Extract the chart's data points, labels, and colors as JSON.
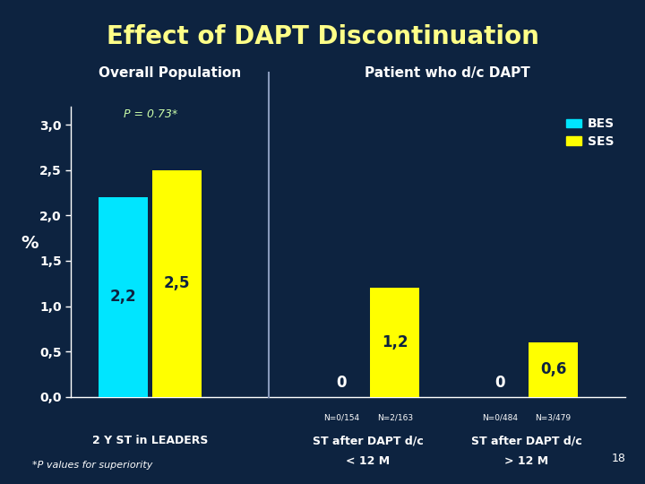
{
  "title": "Effect of DAPT Discontinuation",
  "title_color": "#FFFF88",
  "background_color": "#0d2340",
  "ylabel": "%",
  "ylim": [
    0,
    3.2
  ],
  "yticks": [
    0.0,
    0.5,
    1.0,
    1.5,
    2.0,
    2.5,
    3.0
  ],
  "ytick_labels": [
    "0,0",
    "0,5",
    "1,0",
    "1,5",
    "2,0",
    "2,5",
    "3,0"
  ],
  "section_left_label": "Overall Population",
  "section_right_label": "Patient who d/c DAPT",
  "p_value_text": "P = 0.73*",
  "groups": [
    {
      "xlabel_line1": "2 Y ST in LEADERS",
      "xlabel_line2": "",
      "bes_value": 2.2,
      "ses_value": 2.5,
      "bes_label": "2,2",
      "ses_label": "2,5",
      "bes_n": "",
      "ses_n": ""
    },
    {
      "xlabel_line1": "ST after DAPT d/c",
      "xlabel_line2": "< 12 M",
      "bes_value": 0,
      "ses_value": 1.2,
      "bes_label": "0",
      "ses_label": "1,2",
      "bes_n": "N=0/154",
      "ses_n": "N=2/163"
    },
    {
      "xlabel_line1": "ST after DAPT d/c",
      "xlabel_line2": "> 12 M",
      "bes_value": 0,
      "ses_value": 0.6,
      "bes_label": "0",
      "ses_label": "0,6",
      "bes_n": "N=0/484",
      "ses_n": "N=3/479"
    }
  ],
  "bes_color": "#00E5FF",
  "ses_color": "#FFFF00",
  "legend_bes": "BES",
  "legend_ses": "SES",
  "footnote": "*P values for superiority",
  "page_number": "18",
  "bar_width": 0.25,
  "group_centers": [
    0.45,
    1.55,
    2.35
  ],
  "xlim": [
    0.05,
    2.85
  ],
  "divider_x_data": 1.05
}
